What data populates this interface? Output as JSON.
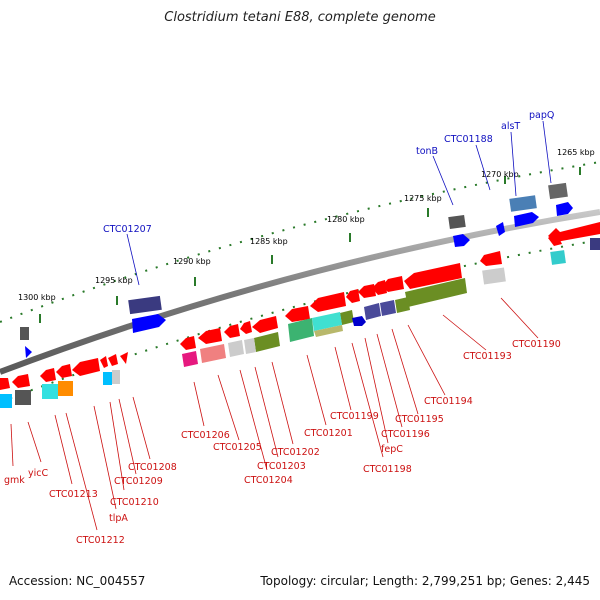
{
  "title": "Clostridium tetani E88, complete genome",
  "footer": {
    "accession": "Accession: NC_004557",
    "topology": "Topology: circular; Length: 2,799,251 bp; Genes: 2,445"
  },
  "colors": {
    "backbone": "#808080",
    "ticks": "#2a7a2a",
    "forward_label": "#1010c0",
    "reverse_label": "#cc1111"
  },
  "kbp_ticks": [
    "1265 kbp",
    "1270 kbp",
    "1275 kbp",
    "1280 kbp",
    "1285 kbp",
    "1290 kbp",
    "1295 kbp",
    "1300 kbp"
  ],
  "forward_genes": [
    "papQ",
    "alsT",
    "CTC01188",
    "tonB",
    "CTC01207"
  ],
  "reverse_genes": [
    "CTC01190",
    "CTC01193",
    "CTC01194",
    "CTC01195",
    "CTC01196",
    "fepC",
    "CTC01198",
    "CTC01199",
    "CTC01201",
    "CTC01202",
    "CTC01203",
    "CTC01204",
    "CTC01205",
    "CTC01206",
    "CTC01208",
    "CTC01209",
    "CTC01210",
    "tlpA",
    "CTC01212",
    "CTC01213",
    "yicC",
    "gmk"
  ]
}
